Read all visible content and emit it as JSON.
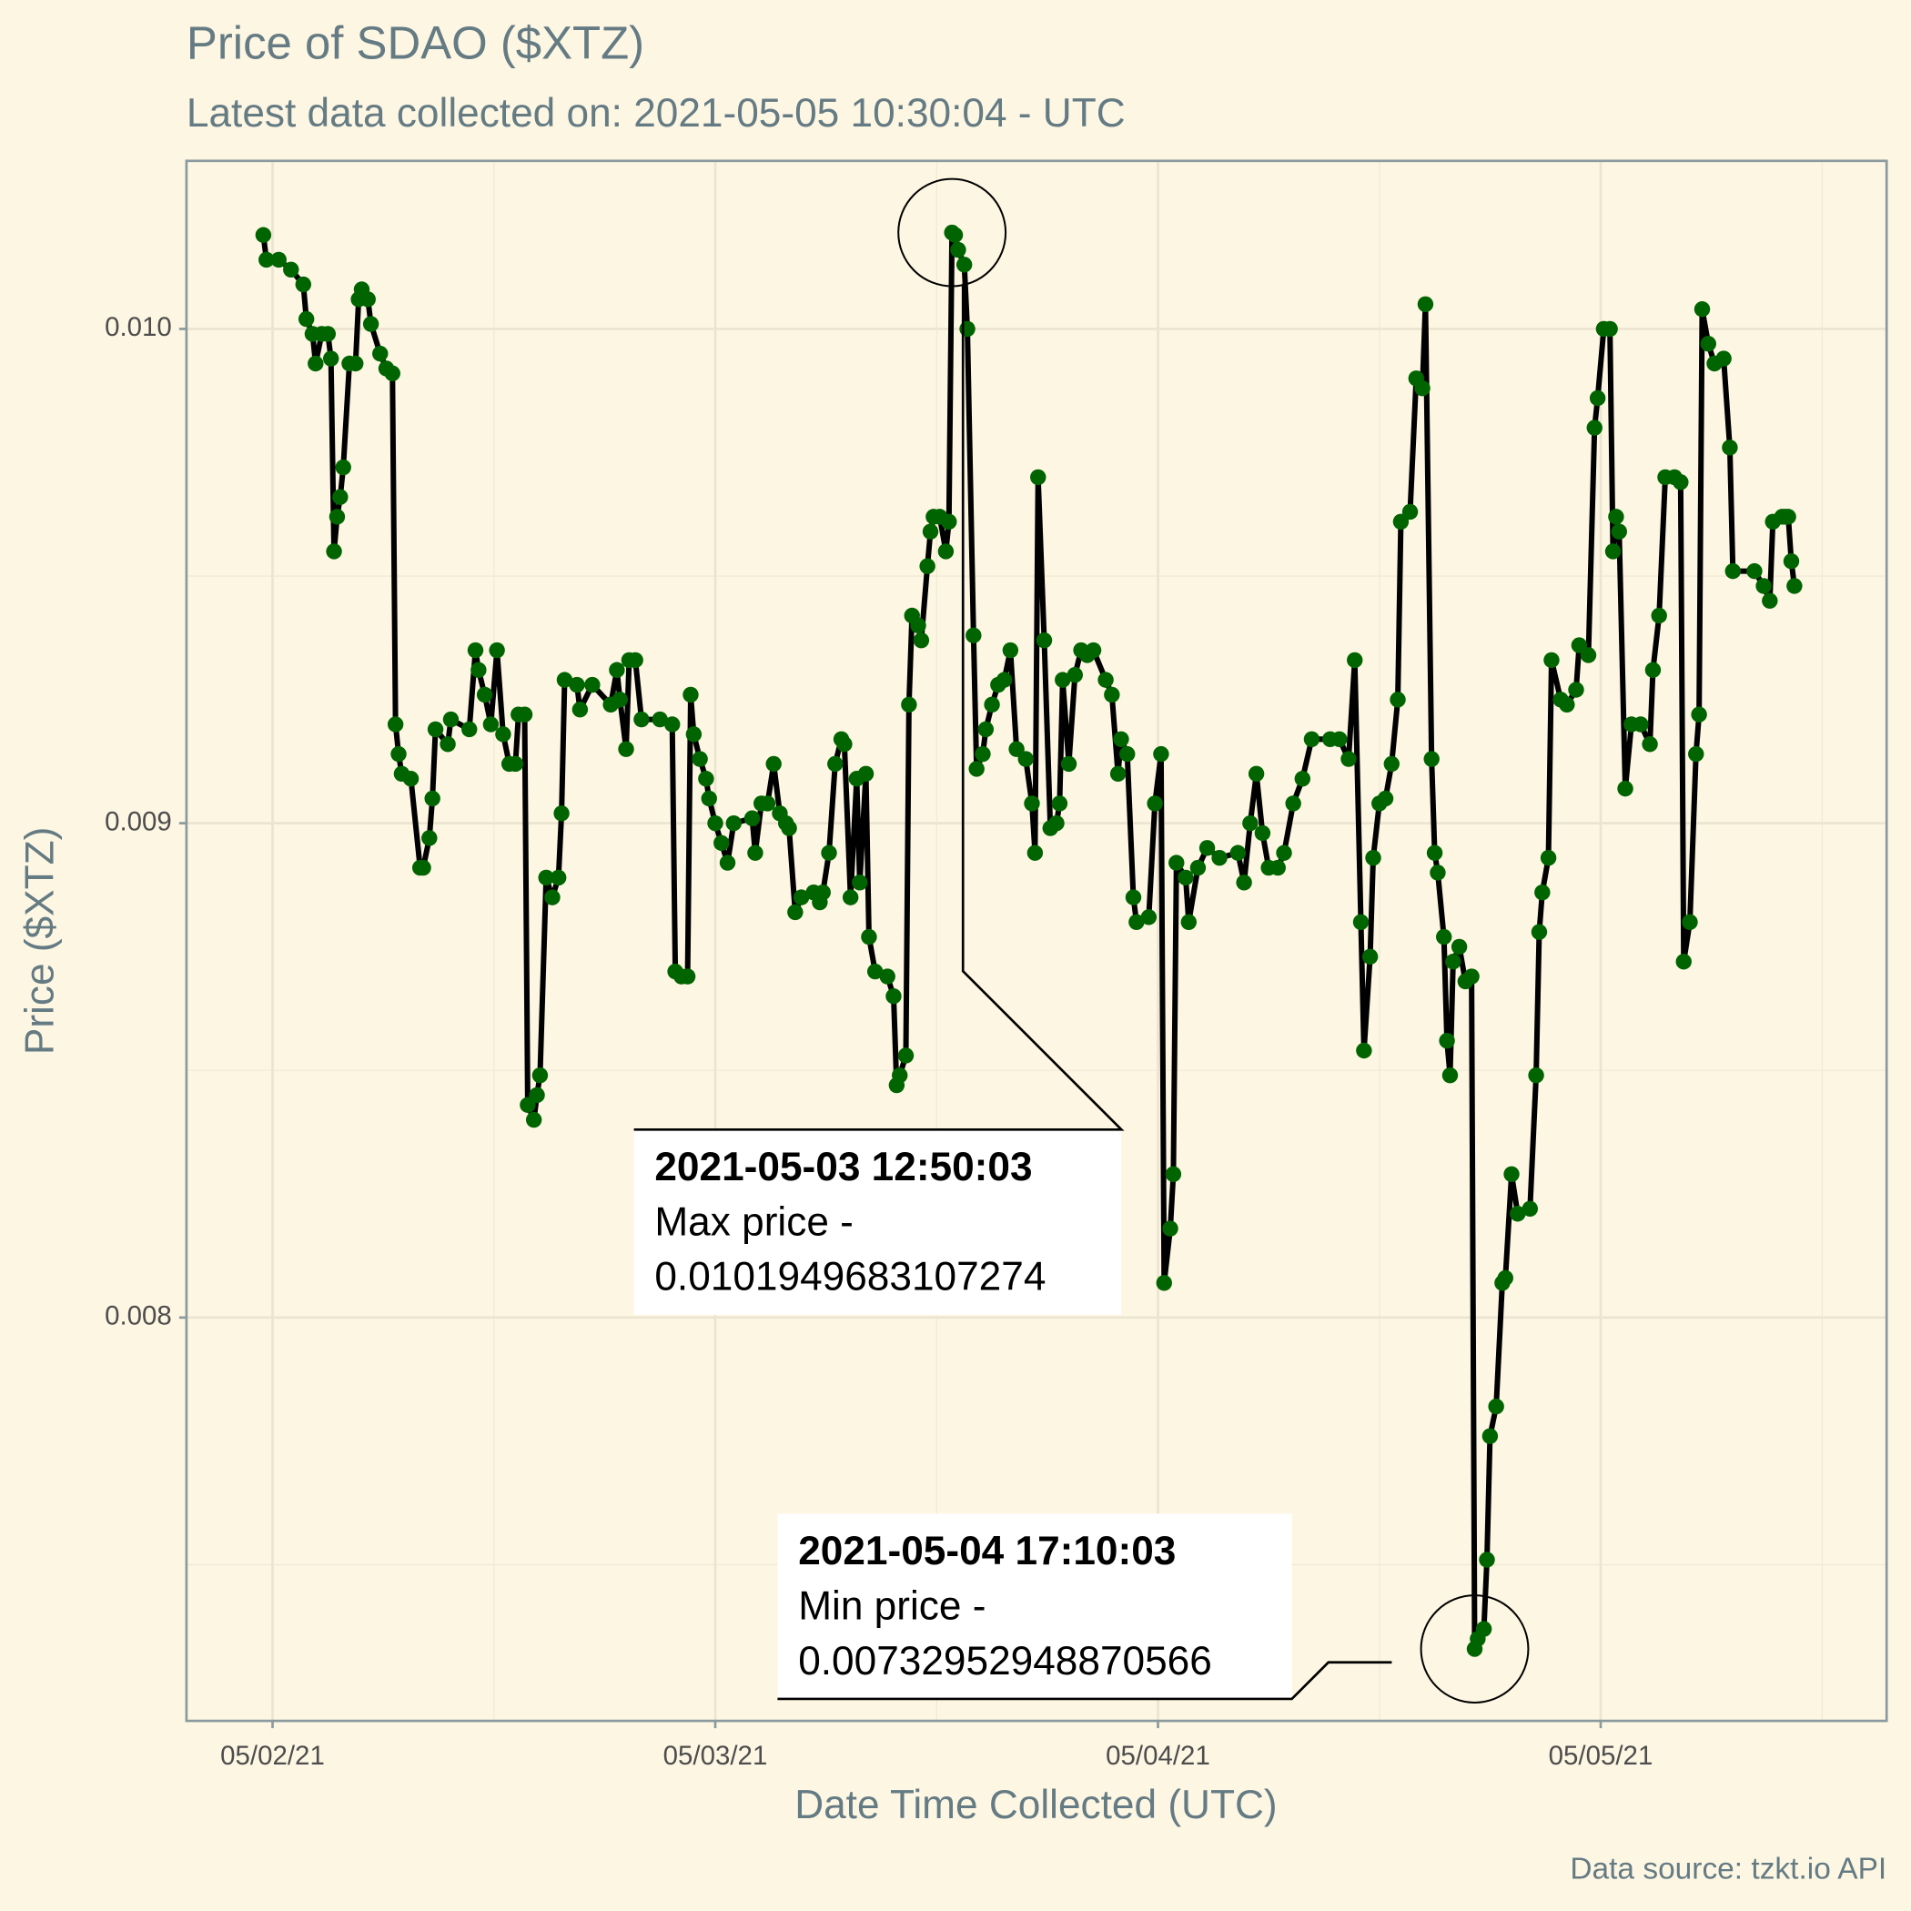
{
  "chart_data": {
    "type": "line",
    "title": "Price of SDAO ($XTZ)",
    "subtitle": "Latest data collected on: 2021-05-05 10:30:04  - UTC",
    "x_label": "Date Time Collected (UTC)",
    "y_label": "Price ($XTZ)",
    "caption": "Data source: tzkt.io API",
    "line_color": "#000000",
    "color": "#006400",
    "grid": true,
    "xlim": [
      "2021-05-01 19:20",
      "2021-05-05 15:30"
    ],
    "xticks": [
      {
        "value": "2021-05-02 00:00",
        "label": "05/02/21"
      },
      {
        "value": "2021-05-03 00:00",
        "label": "05/03/21"
      },
      {
        "value": "2021-05-04 00:00",
        "label": "05/04/21"
      },
      {
        "value": "2021-05-05 00:00",
        "label": "05/05/21"
      }
    ],
    "x_minor_ticks": [
      "2021-05-02 12:00",
      "2021-05-03 12:00",
      "2021-05-04 12:00",
      "2021-05-05 12:00"
    ],
    "ylim": [
      0.007184,
      0.01034
    ],
    "yticks": [
      {
        "value": 0.008,
        "label": "0.008"
      },
      {
        "value": 0.009,
        "label": "0.009"
      },
      {
        "value": 0.01,
        "label": "0.010"
      }
    ],
    "y_minor_ticks": [
      0.0075,
      0.0085,
      0.0095
    ],
    "annotations": [
      {
        "title": "2021-05-03 12:50:03",
        "label": "Max price -",
        "value": 0.0101949683107274
      },
      {
        "title": "2021-05-04 17:10:03",
        "label": "Min price -",
        "value": 0.00732952948870566
      }
    ],
    "x": [
      "2021-05-01 23:30",
      "2021-05-01 23:40",
      "2021-05-02 00:20",
      "2021-05-02 01:00",
      "2021-05-02 01:40",
      "2021-05-02 01:50",
      "2021-05-02 02:10",
      "2021-05-02 02:20",
      "2021-05-02 02:40",
      "2021-05-02 03:00",
      "2021-05-02 03:10",
      "2021-05-02 03:20",
      "2021-05-02 03:30",
      "2021-05-02 03:40",
      "2021-05-02 03:50",
      "2021-05-02 04:10",
      "2021-05-02 04:30",
      "2021-05-02 04:40",
      "2021-05-02 04:50",
      "2021-05-02 05:10",
      "2021-05-02 05:20",
      "2021-05-02 05:50",
      "2021-05-02 06:10",
      "2021-05-02 06:30",
      "2021-05-02 06:40",
      "2021-05-02 06:50",
      "2021-05-02 07:00",
      "2021-05-02 07:30",
      "2021-05-02 08:00",
      "2021-05-02 08:10",
      "2021-05-02 08:30",
      "2021-05-02 08:40",
      "2021-05-02 08:50",
      "2021-05-02 09:30",
      "2021-05-02 09:40",
      "2021-05-02 10:40",
      "2021-05-02 11:00",
      "2021-05-02 11:10",
      "2021-05-02 11:30",
      "2021-05-02 11:50",
      "2021-05-02 12:10",
      "2021-05-02 12:30",
      "2021-05-02 12:50",
      "2021-05-02 13:10",
      "2021-05-02 13:20",
      "2021-05-02 13:40",
      "2021-05-02 13:50",
      "2021-05-02 14:10",
      "2021-05-02 14:20",
      "2021-05-02 14:30",
      "2021-05-02 14:50",
      "2021-05-02 15:10",
      "2021-05-02 15:30",
      "2021-05-02 15:40",
      "2021-05-02 15:50",
      "2021-05-02 16:30",
      "2021-05-02 16:40",
      "2021-05-02 17:20",
      "2021-05-02 18:20",
      "2021-05-02 18:40",
      "2021-05-02 18:50",
      "2021-05-02 19:10",
      "2021-05-02 19:20",
      "2021-05-02 19:40",
      "2021-05-02 20:00",
      "2021-05-02 21:00",
      "2021-05-02 21:40",
      "2021-05-02 21:50",
      "2021-05-02 22:10",
      "2021-05-02 22:30",
      "2021-05-02 22:40",
      "2021-05-02 22:50",
      "2021-05-02 23:10",
      "2021-05-02 23:30",
      "2021-05-02 23:40",
      "2021-05-03 00:00",
      "2021-05-03 00:20",
      "2021-05-03 00:40",
      "2021-05-03 01:00",
      "2021-05-03 02:00",
      "2021-05-03 02:10",
      "2021-05-03 02:30",
      "2021-05-03 02:50",
      "2021-05-03 03:10",
      "2021-05-03 03:30",
      "2021-05-03 03:50",
      "2021-05-03 04:00",
      "2021-05-03 04:20",
      "2021-05-03 04:40",
      "2021-05-03 05:20",
      "2021-05-03 05:40",
      "2021-05-03 05:50",
      "2021-05-03 06:10",
      "2021-05-03 06:30",
      "2021-05-03 06:50",
      "2021-05-03 07:00",
      "2021-05-03 07:20",
      "2021-05-03 07:40",
      "2021-05-03 07:50",
      "2021-05-03 08:10",
      "2021-05-03 08:20",
      "2021-05-03 08:40",
      "2021-05-03 09:20",
      "2021-05-03 09:40",
      "2021-05-03 09:50",
      "2021-05-03 10:00",
      "2021-05-03 10:20",
      "2021-05-03 10:30",
      "2021-05-03 10:40",
      "2021-05-03 11:00",
      "2021-05-03 11:10",
      "2021-05-03 11:30",
      "2021-05-03 11:40",
      "2021-05-03 11:50",
      "2021-05-03 12:10",
      "2021-05-03 12:30",
      "2021-05-03 12:40",
      "2021-05-03 12:50",
      "2021-05-03 13:00",
      "2021-05-03 13:10",
      "2021-05-03 13:30",
      "2021-05-03 13:40",
      "2021-05-03 14:00",
      "2021-05-03 14:10",
      "2021-05-03 14:30",
      "2021-05-03 14:40",
      "2021-05-03 15:00",
      "2021-05-03 15:20",
      "2021-05-03 15:40",
      "2021-05-03 16:00",
      "2021-05-03 16:20",
      "2021-05-03 16:50",
      "2021-05-03 17:10",
      "2021-05-03 17:20",
      "2021-05-03 17:30",
      "2021-05-03 17:50",
      "2021-05-03 18:10",
      "2021-05-03 18:30",
      "2021-05-03 18:40",
      "2021-05-03 18:50",
      "2021-05-03 19:10",
      "2021-05-03 19:30",
      "2021-05-03 19:50",
      "2021-05-03 20:10",
      "2021-05-03 20:30",
      "2021-05-03 21:10",
      "2021-05-03 21:30",
      "2021-05-03 21:50",
      "2021-05-03 22:00",
      "2021-05-03 22:20",
      "2021-05-03 22:40",
      "2021-05-03 22:50",
      "2021-05-03 23:30",
      "2021-05-03 23:50",
      "2021-05-04 00:10",
      "2021-05-04 00:20",
      "2021-05-04 00:40",
      "2021-05-04 00:50",
      "2021-05-04 01:00",
      "2021-05-04 01:30",
      "2021-05-04 01:40",
      "2021-05-04 02:10",
      "2021-05-04 02:40",
      "2021-05-04 03:20",
      "2021-05-04 04:20",
      "2021-05-04 04:40",
      "2021-05-04 05:00",
      "2021-05-04 05:20",
      "2021-05-04 05:40",
      "2021-05-04 06:00",
      "2021-05-04 06:30",
      "2021-05-04 06:50",
      "2021-05-04 07:20",
      "2021-05-04 07:50",
      "2021-05-04 08:20",
      "2021-05-04 09:20",
      "2021-05-04 09:50",
      "2021-05-04 10:20",
      "2021-05-04 10:40",
      "2021-05-04 11:00",
      "2021-05-04 11:10",
      "2021-05-04 11:30",
      "2021-05-04 11:40",
      "2021-05-04 12:00",
      "2021-05-04 12:20",
      "2021-05-04 12:40",
      "2021-05-04 13:00",
      "2021-05-04 13:10",
      "2021-05-04 13:40",
      "2021-05-04 14:00",
      "2021-05-04 14:20",
      "2021-05-04 14:30",
      "2021-05-04 14:50",
      "2021-05-04 15:00",
      "2021-05-04 15:10",
      "2021-05-04 15:30",
      "2021-05-04 15:40",
      "2021-05-04 15:50",
      "2021-05-04 16:00",
      "2021-05-04 16:20",
      "2021-05-04 16:40",
      "2021-05-04 17:00",
      "2021-05-04 17:10",
      "2021-05-04 17:20",
      "2021-05-04 17:40",
      "2021-05-04 17:50",
      "2021-05-04 18:00",
      "2021-05-04 18:20",
      "2021-05-04 18:40",
      "2021-05-04 18:50",
      "2021-05-04 19:10",
      "2021-05-04 19:30",
      "2021-05-04 20:10",
      "2021-05-04 20:30",
      "2021-05-04 20:40",
      "2021-05-04 20:50",
      "2021-05-04 21:10",
      "2021-05-04 21:20",
      "2021-05-04 21:50",
      "2021-05-04 22:10",
      "2021-05-04 22:40",
      "2021-05-04 22:50",
      "2021-05-04 23:20",
      "2021-05-04 23:40",
      "2021-05-04 23:50",
      "2021-05-05 00:10",
      "2021-05-05 00:30",
      "2021-05-05 00:40",
      "2021-05-05 00:50",
      "2021-05-05 01:00",
      "2021-05-05 01:20",
      "2021-05-05 01:40",
      "2021-05-05 02:10",
      "2021-05-05 02:40",
      "2021-05-05 02:50",
      "2021-05-05 03:10",
      "2021-05-05 03:30",
      "2021-05-05 04:00",
      "2021-05-05 04:20",
      "2021-05-05 04:30",
      "2021-05-05 04:50",
      "2021-05-05 05:10",
      "2021-05-05 05:20",
      "2021-05-05 05:30",
      "2021-05-05 05:50",
      "2021-05-05 06:10",
      "2021-05-05 06:40",
      "2021-05-05 07:00",
      "2021-05-05 07:10",
      "2021-05-05 08:20",
      "2021-05-05 08:50",
      "2021-05-05 09:10",
      "2021-05-05 09:20",
      "2021-05-05 09:50",
      "2021-05-05 10:00",
      "2021-05-05 10:10",
      "2021-05-05 10:20",
      "2021-05-05 10:30"
    ],
    "values": [
      0.01019,
      0.01014,
      0.01014,
      0.01012,
      0.01009,
      0.01002,
      0.00999,
      0.00993,
      0.00999,
      0.00999,
      0.00994,
      0.00955,
      0.00962,
      0.00966,
      0.00972,
      0.00993,
      0.00993,
      0.01006,
      0.01008,
      0.01006,
      0.01001,
      0.00995,
      0.00992,
      0.00991,
      0.0092,
      0.00914,
      0.0091,
      0.00909,
      0.00891,
      0.00891,
      0.00897,
      0.00905,
      0.00919,
      0.00916,
      0.00921,
      0.00919,
      0.00935,
      0.00931,
      0.00926,
      0.0092,
      0.00935,
      0.00918,
      0.00912,
      0.00912,
      0.00922,
      0.00922,
      0.00843,
      0.0084,
      0.00845,
      0.00849,
      0.00889,
      0.00885,
      0.00889,
      0.00902,
      0.00929,
      0.00928,
      0.00923,
      0.00928,
      0.00924,
      0.00931,
      0.00925,
      0.00915,
      0.00933,
      0.00933,
      0.00921,
      0.00921,
      0.0092,
      0.0087,
      0.00869,
      0.00869,
      0.00926,
      0.00918,
      0.00913,
      0.00909,
      0.00905,
      0.009,
      0.00896,
      0.00892,
      0.009,
      0.00901,
      0.00894,
      0.00904,
      0.00904,
      0.00912,
      0.00902,
      0.009,
      0.00899,
      0.00882,
      0.00885,
      0.00886,
      0.00884,
      0.00886,
      0.00894,
      0.00912,
      0.00917,
      0.00916,
      0.00885,
      0.00909,
      0.00888,
      0.0091,
      0.00877,
      0.0087,
      0.00869,
      0.00865,
      0.00847,
      0.00849,
      0.00853,
      0.00924,
      0.00942,
      0.0094,
      0.00937,
      0.00952,
      0.00959,
      0.00962,
      0.00962,
      0.00955,
      0.00961,
      0.0101949683107274,
      0.01019,
      0.01016,
      0.01013,
      0.01,
      0.00938,
      0.00911,
      0.00914,
      0.00919,
      0.00924,
      0.00928,
      0.00929,
      0.00935,
      0.00915,
      0.00913,
      0.00904,
      0.00894,
      0.0097,
      0.00937,
      0.00899,
      0.009,
      0.00904,
      0.00929,
      0.00912,
      0.0093,
      0.00935,
      0.00934,
      0.00935,
      0.00929,
      0.00926,
      0.0091,
      0.00917,
      0.00914,
      0.00885,
      0.0088,
      0.00881,
      0.00904,
      0.00914,
      0.00807,
      0.00818,
      0.00829,
      0.00892,
      0.00889,
      0.0088,
      0.00891,
      0.00895,
      0.00893,
      0.00894,
      0.00888,
      0.009,
      0.0091,
      0.00898,
      0.00891,
      0.00891,
      0.00894,
      0.00904,
      0.00909,
      0.00917,
      0.00917,
      0.00917,
      0.00913,
      0.00933,
      0.0088,
      0.00854,
      0.00873,
      0.00893,
      0.00904,
      0.00905,
      0.00912,
      0.00925,
      0.00961,
      0.00963,
      0.0099,
      0.00988,
      0.01005,
      0.00913,
      0.00894,
      0.0089,
      0.00877,
      0.00856,
      0.00849,
      0.00872,
      0.00875,
      0.00868,
      0.00869,
      0.00732952948870566,
      0.00735,
      0.00737,
      0.00751,
      0.00776,
      0.00782,
      0.00807,
      0.00808,
      0.00829,
      0.00821,
      0.00822,
      0.00849,
      0.00878,
      0.00886,
      0.00893,
      0.00933,
      0.00925,
      0.00924,
      0.00927,
      0.00936,
      0.00934,
      0.0098,
      0.00986,
      0.01,
      0.01,
      0.00955,
      0.00962,
      0.00959,
      0.00907,
      0.0092,
      0.0092,
      0.00916,
      0.00931,
      0.00942,
      0.0097,
      0.0097,
      0.00969,
      0.00872,
      0.0088,
      0.00914,
      0.00922,
      0.01004,
      0.00997,
      0.00993,
      0.00994,
      0.00976,
      0.00951,
      0.00951,
      0.00948,
      0.00945,
      0.00961,
      0.00962,
      0.00962,
      0.00962,
      0.00953,
      0.00948
    ]
  }
}
